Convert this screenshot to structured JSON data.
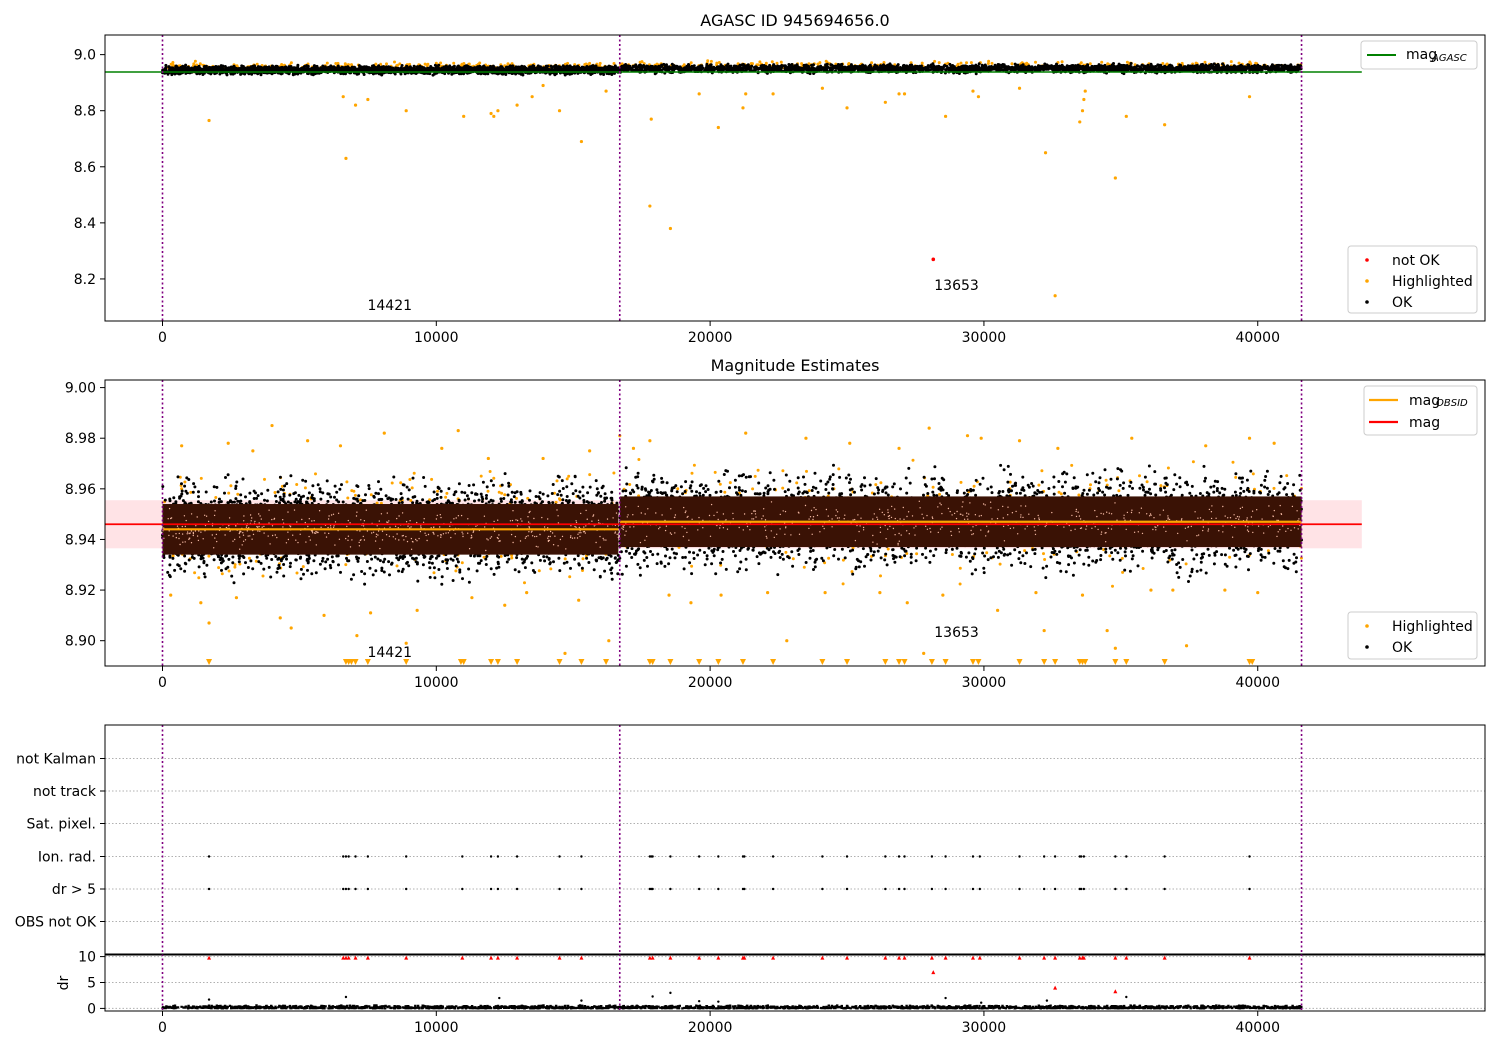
{
  "colors": {
    "ok": "#000000",
    "highlighted": "#ffa500",
    "not_ok": "#ff0000",
    "agasc_line": "#008000",
    "obsid_line": "#ffa500",
    "mag_line": "#ff0000",
    "mag_band": "#ffc0c8",
    "obs_boundary": "#800080",
    "band_fill": "#3a1205"
  },
  "chart_data": [
    {
      "type": "scatter",
      "title": "AGASC ID 945694656.0",
      "xlim": [
        -2100,
        48300
      ],
      "ylim": [
        8.05,
        9.07
      ],
      "xticks": [
        0,
        10000,
        20000,
        30000,
        40000
      ],
      "yticks": [
        8.2,
        8.4,
        8.6,
        8.8,
        9.0
      ],
      "ytick_labels": [
        "8.2",
        "8.4",
        "8.6",
        "8.8",
        "9.0"
      ],
      "obs_boundaries": [
        0,
        16700,
        41600
      ],
      "obs_labels": [
        {
          "text": "14421",
          "x": 8300,
          "y": 8.09
        },
        {
          "text": "13653",
          "x": 29000,
          "y": 8.16
        }
      ],
      "lines": [
        {
          "name": "mag",
          "subscript": "AGASC",
          "y": 8.938,
          "x": [
            -2100,
            43800
          ]
        }
      ],
      "legend_points": [
        "not OK",
        "Highlighted",
        "OK"
      ],
      "ok_band": {
        "segments": [
          {
            "x": [
              0,
              16650
            ],
            "y": [
              8.925,
              8.965
            ]
          },
          {
            "x": [
              16700,
              41600
            ],
            "y": [
              8.93,
              8.97
            ]
          }
        ]
      },
      "highlighted": [
        [
          1700,
          8.765
        ],
        [
          6700,
          8.63
        ],
        [
          7050,
          8.82
        ],
        [
          6600,
          8.85
        ],
        [
          7500,
          8.84
        ],
        [
          8900,
          8.8
        ],
        [
          11000,
          8.78
        ],
        [
          12000,
          8.79
        ],
        [
          12250,
          8.8
        ],
        [
          12100,
          8.78
        ],
        [
          12950,
          8.82
        ],
        [
          13500,
          8.85
        ],
        [
          13900,
          8.89
        ],
        [
          14500,
          8.8
        ],
        [
          15300,
          8.69
        ],
        [
          16200,
          8.87
        ],
        [
          17800,
          8.46
        ],
        [
          17850,
          8.77
        ],
        [
          18550,
          8.38
        ],
        [
          19600,
          8.86
        ],
        [
          20300,
          8.74
        ],
        [
          21200,
          8.81
        ],
        [
          21300,
          8.86
        ],
        [
          22300,
          8.86
        ],
        [
          24100,
          8.88
        ],
        [
          25000,
          8.81
        ],
        [
          26400,
          8.83
        ],
        [
          26900,
          8.86
        ],
        [
          27100,
          8.86
        ],
        [
          28600,
          8.78
        ],
        [
          29600,
          8.87
        ],
        [
          29800,
          8.85
        ],
        [
          31300,
          8.88
        ],
        [
          32250,
          8.65
        ],
        [
          32600,
          8.14
        ],
        [
          33500,
          8.76
        ],
        [
          33600,
          8.8
        ],
        [
          33650,
          8.84
        ],
        [
          33700,
          8.87
        ],
        [
          34800,
          8.56
        ],
        [
          35200,
          8.78
        ],
        [
          36600,
          8.75
        ],
        [
          39700,
          8.85
        ]
      ],
      "not_ok": [
        [
          28150,
          8.27
        ]
      ]
    },
    {
      "type": "scatter",
      "title": "Magnitude Estimates",
      "xlim": [
        -2100,
        48300
      ],
      "ylim": [
        8.89,
        9.003
      ],
      "xticks": [
        0,
        10000,
        20000,
        30000,
        40000
      ],
      "yticks": [
        8.9,
        8.92,
        8.94,
        8.96,
        8.98,
        9.0
      ],
      "ytick_labels": [
        "8.90",
        "8.92",
        "8.94",
        "8.96",
        "8.98",
        "9.00"
      ],
      "obs_boundaries": [
        0,
        16700,
        41600
      ],
      "obs_labels": [
        {
          "text": "14421",
          "x": 8300,
          "y": 8.8935
        },
        {
          "text": "13653",
          "x": 29000,
          "y": 8.9015
        }
      ],
      "mag": {
        "value": 8.946,
        "band": [
          8.9365,
          8.9555
        ],
        "x": [
          -2100,
          43800
        ]
      },
      "obsid_mag": [
        {
          "x": [
            0,
            16650
          ],
          "y": 8.944
        },
        {
          "x": [
            16700,
            41600
          ],
          "y": 8.947
        }
      ],
      "legend_lines": [
        {
          "name": "mag",
          "subscript": "OBSID"
        },
        {
          "name": "mag",
          "subscript": ""
        }
      ],
      "legend_points": [
        "Highlighted",
        "OK"
      ],
      "ok_band": {
        "segments": [
          {
            "x": [
              0,
              16650
            ],
            "y": [
              8.921,
              8.968
            ]
          },
          {
            "x": [
              16700,
              41600
            ],
            "y": [
              8.922,
              8.972
            ]
          }
        ]
      },
      "core_band": {
        "segments": [
          {
            "x": [
              0,
              16650
            ],
            "y": [
              8.934,
              8.954
            ]
          },
          {
            "x": [
              16700,
              41600
            ],
            "y": [
              8.937,
              8.957
            ]
          }
        ]
      },
      "highlighted": [
        [
          300,
          8.918
        ],
        [
          700,
          8.977
        ],
        [
          1400,
          8.915
        ],
        [
          1700,
          8.907
        ],
        [
          2400,
          8.978
        ],
        [
          2700,
          8.917
        ],
        [
          3300,
          8.975
        ],
        [
          4000,
          8.985
        ],
        [
          4300,
          8.909
        ],
        [
          4700,
          8.905
        ],
        [
          5300,
          8.979
        ],
        [
          5900,
          8.91
        ],
        [
          6500,
          8.977
        ],
        [
          7100,
          8.902
        ],
        [
          7600,
          8.911
        ],
        [
          8100,
          8.982
        ],
        [
          8900,
          8.899
        ],
        [
          9300,
          8.912
        ],
        [
          10200,
          8.976
        ],
        [
          10800,
          8.983
        ],
        [
          11300,
          8.917
        ],
        [
          11900,
          8.972
        ],
        [
          12500,
          8.914
        ],
        [
          13300,
          8.919
        ],
        [
          13900,
          8.972
        ],
        [
          14700,
          8.895
        ],
        [
          15200,
          8.916
        ],
        [
          15600,
          8.975
        ],
        [
          16300,
          8.9
        ],
        [
          16700,
          8.981
        ],
        [
          17200,
          8.976
        ],
        [
          17800,
          8.979
        ],
        [
          18500,
          8.918
        ],
        [
          19300,
          8.915
        ],
        [
          20400,
          8.918
        ],
        [
          21300,
          8.982
        ],
        [
          22100,
          8.919
        ],
        [
          22800,
          8.9
        ],
        [
          23500,
          8.98
        ],
        [
          24200,
          8.919
        ],
        [
          25100,
          8.978
        ],
        [
          26200,
          8.919
        ],
        [
          26900,
          8.976
        ],
        [
          27200,
          8.915
        ],
        [
          27800,
          8.895
        ],
        [
          28000,
          8.984
        ],
        [
          28500,
          8.918
        ],
        [
          29400,
          8.981
        ],
        [
          29900,
          8.98
        ],
        [
          30500,
          8.912
        ],
        [
          31300,
          8.979
        ],
        [
          31900,
          8.919
        ],
        [
          32200,
          8.904
        ],
        [
          32700,
          8.976
        ],
        [
          33600,
          8.918
        ],
        [
          34500,
          8.904
        ],
        [
          34800,
          8.897
        ],
        [
          35400,
          8.98
        ],
        [
          36100,
          8.92
        ],
        [
          36900,
          8.92
        ],
        [
          37400,
          8.898
        ],
        [
          38100,
          8.977
        ],
        [
          38800,
          8.92
        ],
        [
          39700,
          8.98
        ],
        [
          40000,
          8.919
        ],
        [
          40600,
          8.978
        ]
      ],
      "lower_limit_markers_x": [
        1700,
        6700,
        6800,
        6900,
        7050,
        7500,
        8900,
        10900,
        11000,
        12000,
        12250,
        12950,
        14500,
        15300,
        16200,
        17800,
        17900,
        18550,
        19600,
        20300,
        21200,
        22300,
        24100,
        25000,
        26400,
        26900,
        27100,
        28100,
        28600,
        29600,
        29800,
        31300,
        32200,
        32600,
        33500,
        33600,
        33700,
        34800,
        35200,
        36600,
        39700,
        39800
      ]
    },
    {
      "type": "scatter",
      "title": "",
      "xlim": [
        -2100,
        48300
      ],
      "xticks": [
        0,
        10000,
        20000,
        30000,
        40000
      ],
      "obs_boundaries": [
        0,
        16700,
        41600
      ],
      "categories": [
        "not Kalman",
        "not track",
        "Sat. pixel.",
        "Ion. rad.",
        "dr > 5",
        "OBS not OK"
      ],
      "flag_x": [
        1700,
        6600,
        6700,
        6800,
        7050,
        7500,
        8900,
        10950,
        12000,
        12250,
        12950,
        14500,
        15300,
        17800,
        17850,
        17900,
        18550,
        19600,
        20300,
        21200,
        21250,
        22300,
        24100,
        25000,
        26400,
        26900,
        27100,
        28100,
        28600,
        29600,
        29850,
        31300,
        32200,
        32600,
        33500,
        33550,
        33650,
        34800,
        35200,
        36600,
        39700
      ],
      "flags": [
        "Ion. rad.",
        "dr > 5"
      ]
    },
    {
      "type": "scatter",
      "title": "",
      "ylabel": "dr",
      "xlim": [
        -2100,
        48300
      ],
      "ylim": [
        -0.5,
        10.5
      ],
      "xticks": [
        0,
        10000,
        20000,
        30000,
        40000
      ],
      "yticks": [
        0,
        5,
        10
      ],
      "ytick_labels": [
        "0",
        "5",
        "10"
      ],
      "obs_boundaries": [
        0,
        16700,
        41600
      ],
      "high_dr_red": [
        [
          1700,
          9.8
        ],
        [
          6600,
          9.8
        ],
        [
          6700,
          9.8
        ],
        [
          6800,
          9.8
        ],
        [
          7050,
          9.8
        ],
        [
          7500,
          9.8
        ],
        [
          8900,
          9.8
        ],
        [
          10950,
          9.8
        ],
        [
          12000,
          9.8
        ],
        [
          12250,
          9.8
        ],
        [
          12950,
          9.8
        ],
        [
          14500,
          9.8
        ],
        [
          15300,
          9.8
        ],
        [
          17800,
          9.8
        ],
        [
          17900,
          9.8
        ],
        [
          18550,
          9.8
        ],
        [
          19600,
          9.8
        ],
        [
          20300,
          9.8
        ],
        [
          21200,
          9.8
        ],
        [
          21250,
          9.8
        ],
        [
          22300,
          9.8
        ],
        [
          24100,
          9.8
        ],
        [
          25000,
          9.8
        ],
        [
          26400,
          9.8
        ],
        [
          26900,
          9.8
        ],
        [
          27100,
          9.8
        ],
        [
          28100,
          9.8
        ],
        [
          28600,
          9.8
        ],
        [
          29600,
          9.8
        ],
        [
          29850,
          9.8
        ],
        [
          31300,
          9.8
        ],
        [
          32200,
          9.8
        ],
        [
          32600,
          9.8
        ],
        [
          33500,
          9.8
        ],
        [
          33600,
          9.8
        ],
        [
          33650,
          9.8
        ],
        [
          34800,
          9.8
        ],
        [
          35200,
          9.8
        ],
        [
          36600,
          9.8
        ],
        [
          39700,
          9.8
        ],
        [
          28150,
          7.0
        ],
        [
          32600,
          4.0
        ],
        [
          34800,
          3.3
        ]
      ],
      "mid_dr_ok": [
        [
          1700,
          1.7
        ],
        [
          6700,
          2.2
        ],
        [
          12300,
          2.0
        ],
        [
          15300,
          1.5
        ],
        [
          17900,
          2.3
        ],
        [
          18550,
          3.0
        ],
        [
          19600,
          1.4
        ],
        [
          20300,
          1.3
        ],
        [
          28600,
          2.0
        ],
        [
          32300,
          1.5
        ],
        [
          35200,
          2.2
        ],
        [
          29900,
          1.1
        ]
      ]
    }
  ]
}
